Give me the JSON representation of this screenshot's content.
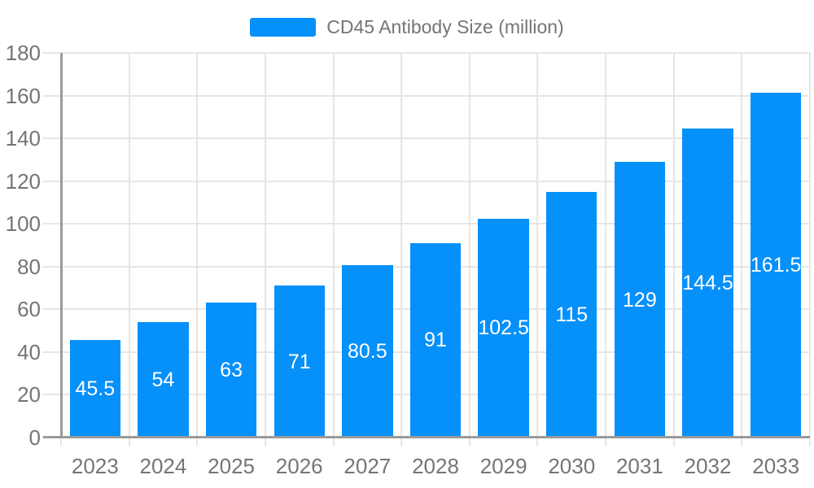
{
  "chart_data": {
    "type": "bar",
    "title": "CD45 Antibody Size (million)",
    "categories": [
      "2023",
      "2024",
      "2025",
      "2026",
      "2027",
      "2028",
      "2029",
      "2030",
      "2031",
      "2032",
      "2033"
    ],
    "values": [
      45.5,
      54,
      63,
      71,
      80.5,
      91,
      102.5,
      115,
      129,
      144.5,
      161.5
    ],
    "bar_labels": [
      "45.5",
      "54",
      "63",
      "71",
      "80.5",
      "91",
      "102.5",
      "115",
      "129",
      "144.5",
      "161.5"
    ],
    "xlabel": "",
    "ylabel": "",
    "ylim": [
      0,
      180
    ],
    "yticks": [
      0,
      20,
      40,
      60,
      80,
      100,
      120,
      140,
      160,
      180
    ],
    "grid": true,
    "legend_position": "top-center",
    "bar_color": "#0690fa",
    "value_label_color": "#ffffff",
    "axis_text_color": "#757575",
    "axis_line_color": "#9b9b9b",
    "gridline_color": "#e6e6e6",
    "background_color": "#ffffff"
  }
}
